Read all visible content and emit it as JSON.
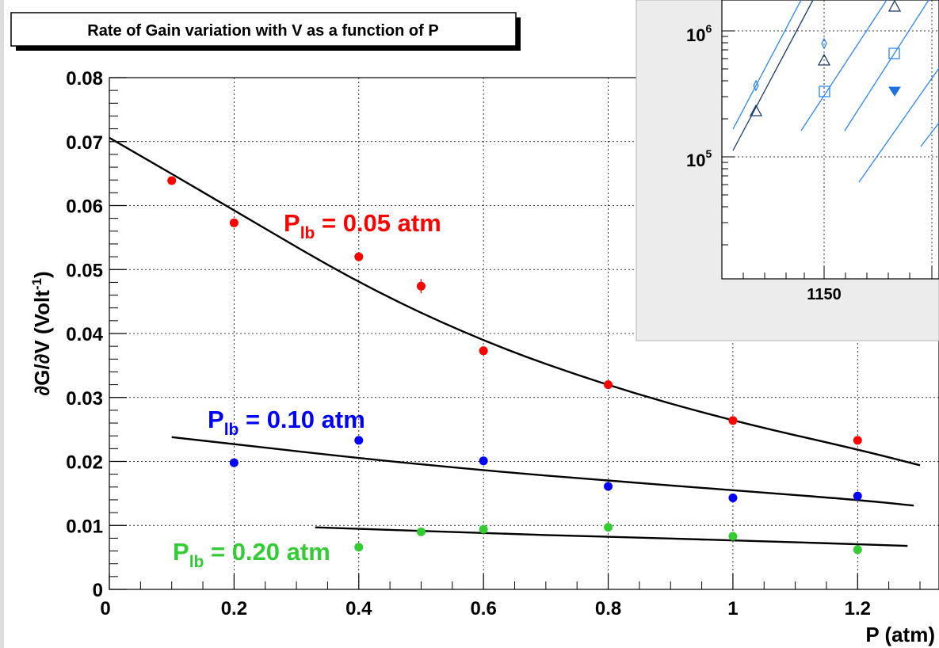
{
  "chart_data": [
    {
      "type": "scatter",
      "title": "Rate of Gain variation with V as a function of P",
      "xlabel": "P (atm)",
      "ylabel": "∂G/∂V (Volt⁻¹)",
      "ylabel_parts": {
        "main": "∂G/∂V (Volt",
        "sup": "-1",
        "end": ")"
      },
      "xlim": [
        0,
        1.3
      ],
      "ylim": [
        0,
        0.08
      ],
      "x_ticks": [
        "0",
        "0.2",
        "0.4",
        "0.6",
        "0.8",
        "1",
        "1.2"
      ],
      "x_tick_values": [
        0,
        0.2,
        0.4,
        0.6,
        0.8,
        1.0,
        1.2
      ],
      "y_ticks": [
        "0",
        "0.01",
        "0.02",
        "0.03",
        "0.04",
        "0.05",
        "0.06",
        "0.07",
        "0.08"
      ],
      "y_tick_values": [
        0,
        0.01,
        0.02,
        0.03,
        0.04,
        0.05,
        0.06,
        0.07,
        0.08
      ],
      "grid": true,
      "series": [
        {
          "name": "Plb = 0.05 atm",
          "label_parts": {
            "main": "P",
            "sub": "lb",
            "rest": " = 0.05 atm"
          },
          "color": "#ff0000",
          "points": [
            [
              0.1,
              0.0639
            ],
            [
              0.2,
              0.0573
            ],
            [
              0.4,
              0.052
            ],
            [
              0.5,
              0.0474
            ],
            [
              0.6,
              0.0373
            ],
            [
              0.8,
              0.032
            ],
            [
              1.0,
              0.0264
            ],
            [
              1.2,
              0.0233
            ]
          ],
          "fit_range": [
            0.0,
            1.3
          ],
          "fit_points": [
            [
              0.0,
              0.0706
            ],
            [
              0.2,
              0.0593
            ],
            [
              0.4,
              0.0478
            ],
            [
              0.6,
              0.0387
            ],
            [
              0.8,
              0.0318
            ],
            [
              1.0,
              0.0263
            ],
            [
              1.2,
              0.0219
            ],
            [
              1.3,
              0.0194
            ]
          ]
        },
        {
          "name": "Plb = 0.10 atm",
          "label_parts": {
            "main": "P",
            "sub": "lb",
            "rest": " = 0.10 atm"
          },
          "color": "#0000ff",
          "points": [
            [
              0.2,
              0.0198
            ],
            [
              0.4,
              0.0233
            ],
            [
              0.6,
              0.0201
            ],
            [
              0.8,
              0.0161
            ],
            [
              1.0,
              0.0143
            ],
            [
              1.2,
              0.0146
            ]
          ],
          "fit_range": [
            0.1,
            1.29
          ],
          "fit_points": [
            [
              0.1,
              0.0238
            ],
            [
              0.4,
              0.0205
            ],
            [
              0.6,
              0.0186
            ],
            [
              0.8,
              0.017
            ],
            [
              1.0,
              0.0155
            ],
            [
              1.2,
              0.014
            ],
            [
              1.29,
              0.0131
            ]
          ]
        },
        {
          "name": "Plb = 0.20 atm",
          "label_parts": {
            "main": "P",
            "sub": "lb",
            "rest": " = 0.20 atm"
          },
          "color": "#33cc33",
          "points": [
            [
              0.4,
              0.0066
            ],
            [
              0.5,
              0.009
            ],
            [
              0.6,
              0.0094
            ],
            [
              0.8,
              0.0097
            ],
            [
              1.0,
              0.0083
            ],
            [
              1.2,
              0.0062
            ]
          ],
          "fit_range": [
            0.33,
            1.28
          ],
          "fit_points": [
            [
              0.33,
              0.0097
            ],
            [
              0.6,
              0.0088
            ],
            [
              0.8,
              0.0082
            ],
            [
              1.0,
              0.0077
            ],
            [
              1.28,
              0.0068
            ]
          ]
        }
      ]
    },
    {
      "type": "scatter",
      "title": "",
      "x_scale": "linear",
      "y_scale": "log",
      "x_ticks": [
        "1150"
      ],
      "y_ticks": [
        {
          "base": "10",
          "exp": "6"
        },
        {
          "base": "10",
          "exp": "5"
        }
      ],
      "grid": true,
      "markers": [
        "diamond",
        "triangle",
        "square",
        "filled-triangle-down"
      ],
      "note": "partially visible inset (cropped at top and right)"
    }
  ]
}
